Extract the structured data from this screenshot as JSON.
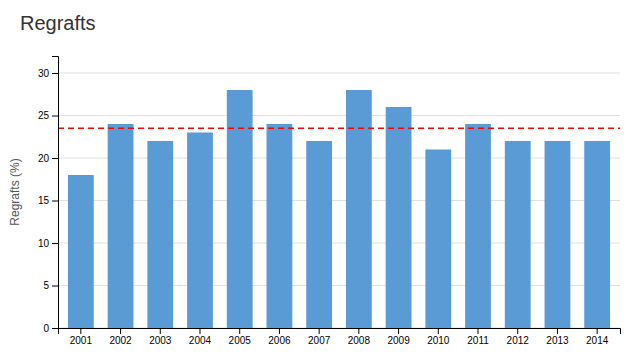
{
  "chart_data": {
    "type": "bar",
    "title": "Regrafts",
    "ylabel": "Regrafts (%)",
    "categories": [
      "2001",
      "2002",
      "2003",
      "2004",
      "2005",
      "2006",
      "2007",
      "2008",
      "2009",
      "2010",
      "2011",
      "2012",
      "2013",
      "2014"
    ],
    "values": [
      18,
      24,
      22,
      23,
      28,
      24,
      22,
      28,
      26,
      21,
      24,
      22,
      22,
      22
    ],
    "color": "#5B9BD5",
    "ylim": [
      0,
      32
    ],
    "yticks": [
      0,
      5,
      10,
      15,
      20,
      25,
      30
    ],
    "grid": true,
    "reference_line": {
      "value": 23.5,
      "color": "#FF0000",
      "line_style": "dashed"
    }
  }
}
